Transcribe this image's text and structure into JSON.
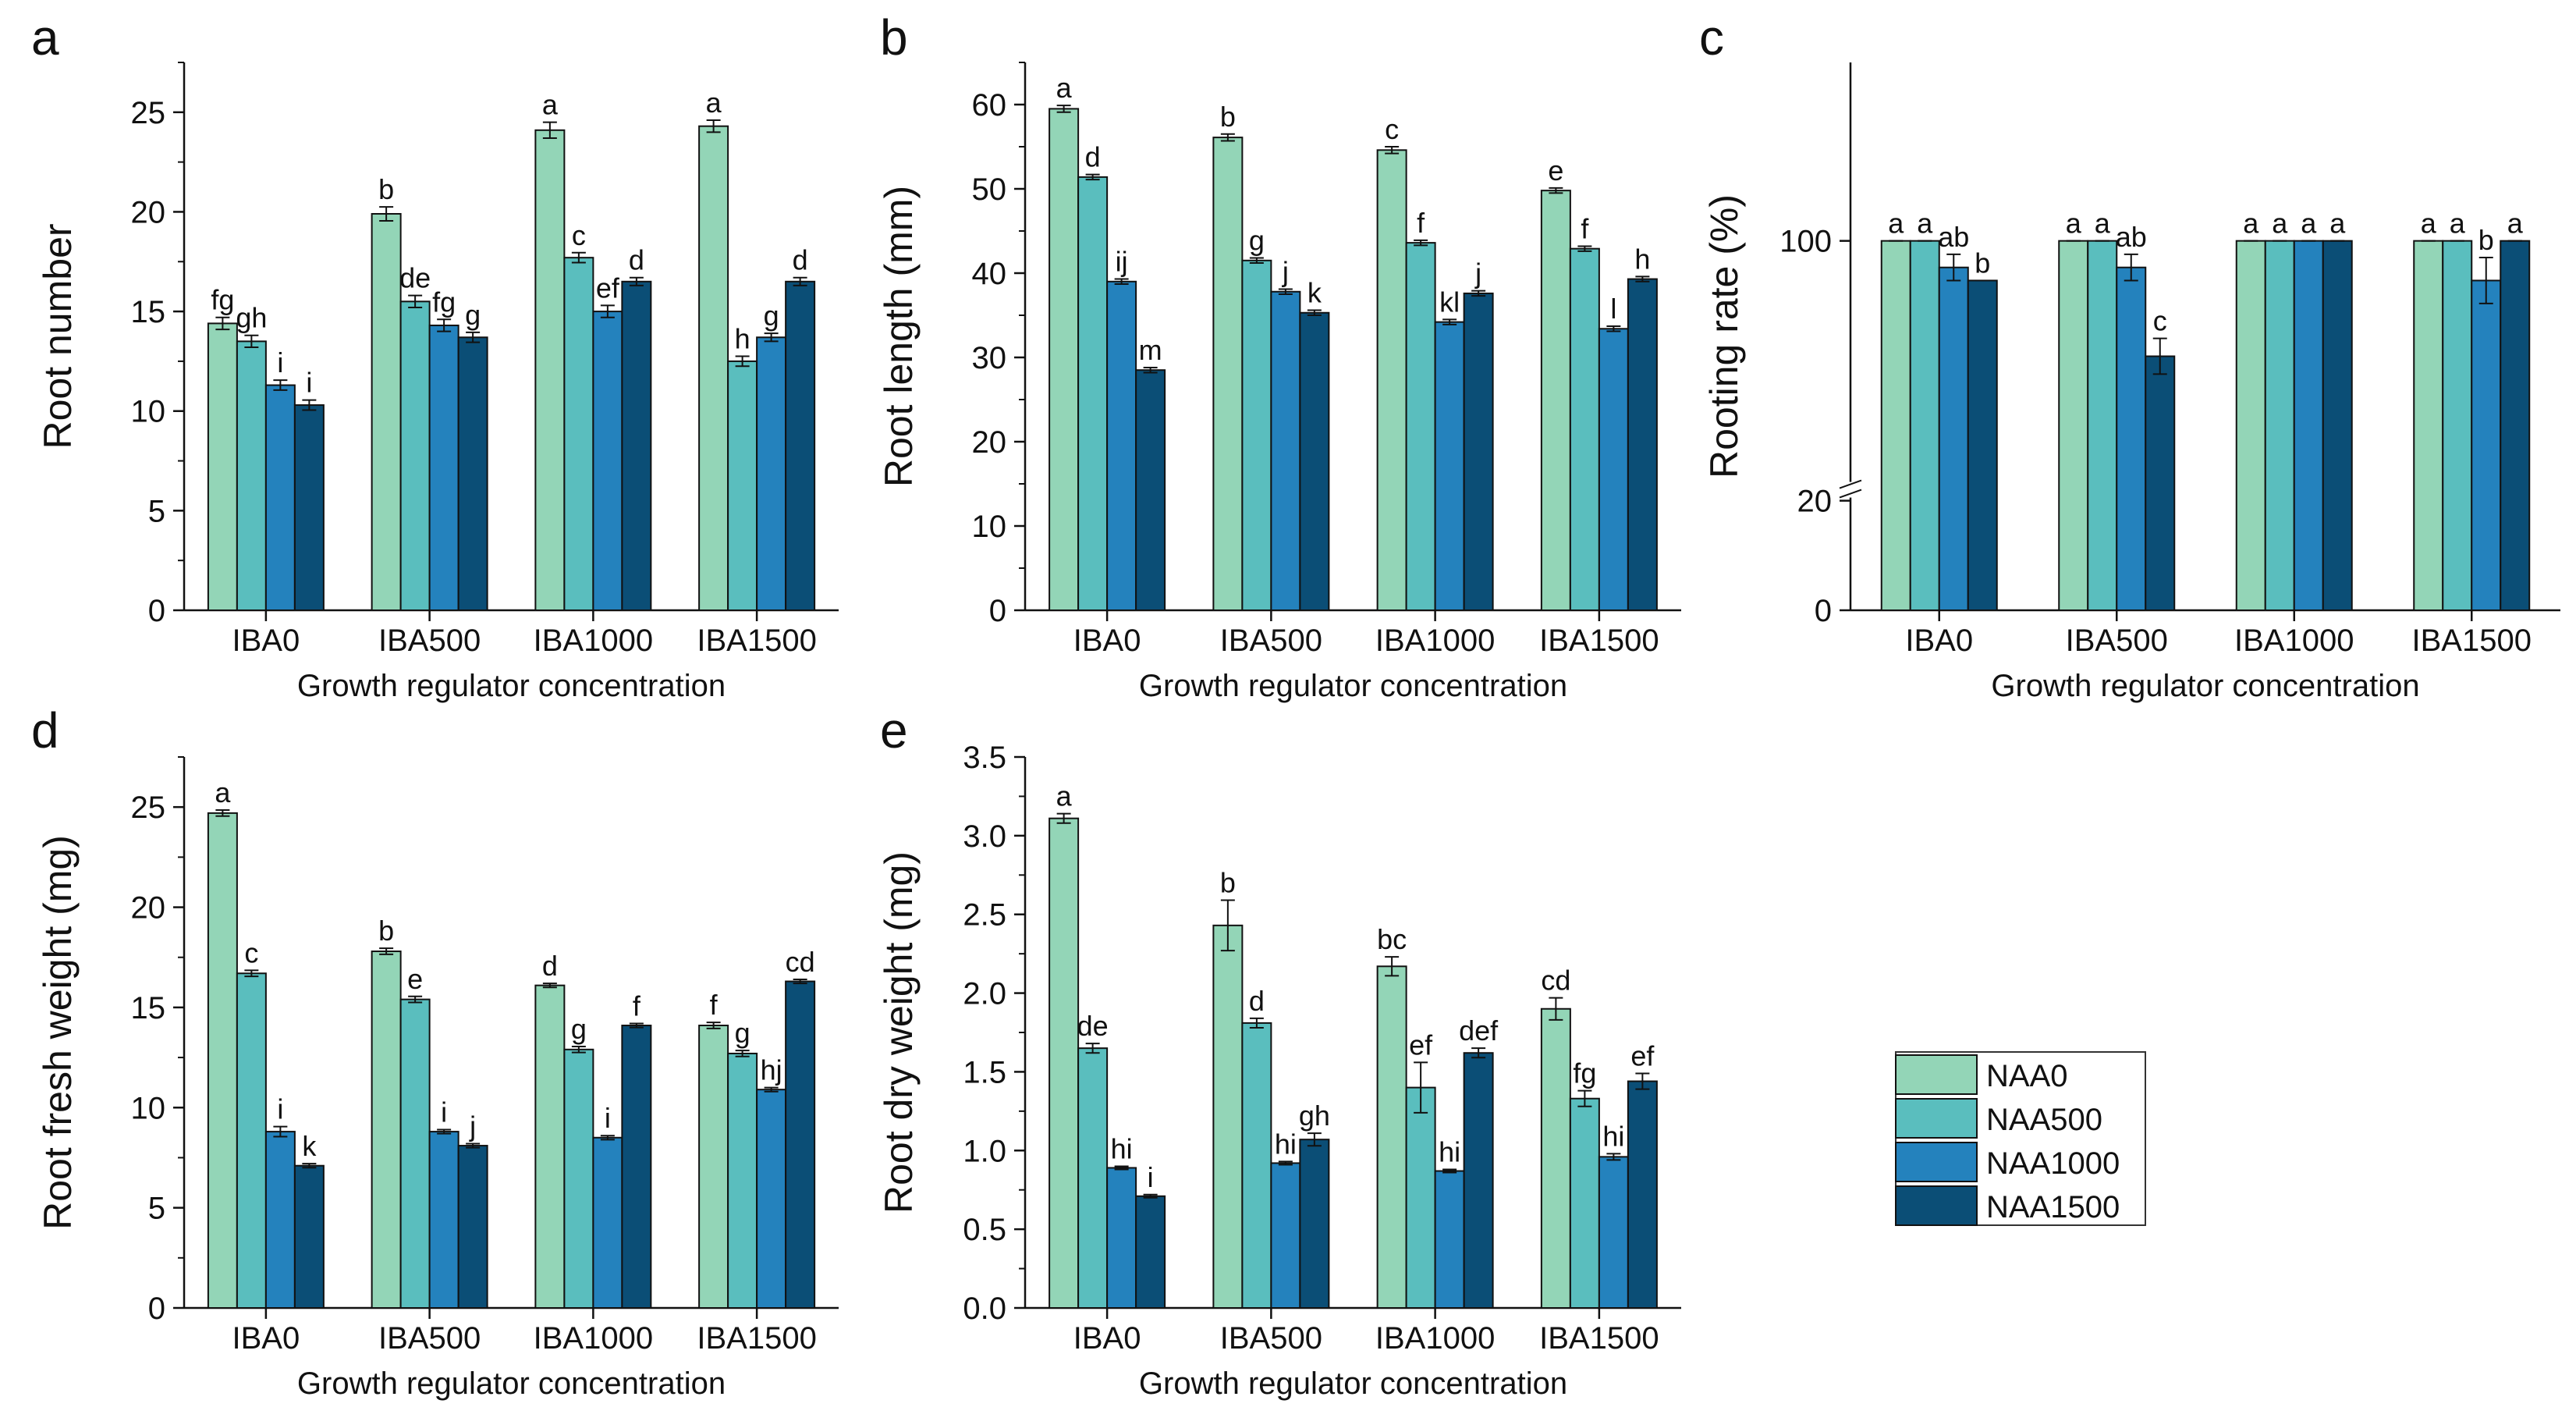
{
  "x_axis_title": "Growth regulator concentration",
  "legend": {
    "entries": [
      "NAA0",
      "NAA500",
      "NAA1000",
      "NAA1500"
    ],
    "colors": [
      "#93d5b7",
      "#5abebe",
      "#2482bd",
      "#0b4e76"
    ]
  },
  "chart_data": [
    {
      "type": "bar",
      "panel": "a",
      "ylabel": "Root number",
      "xlabel": "Growth regulator concentration",
      "categories": [
        "IBA0",
        "IBA500",
        "IBA1000",
        "IBA1500"
      ],
      "ylim": [
        0,
        27.5
      ],
      "yticks": [
        0,
        5,
        10,
        15,
        20,
        25
      ],
      "ytick_labels": [
        "0",
        "5",
        "10",
        "15",
        "20",
        "25"
      ],
      "series": [
        {
          "name": "NAA0",
          "values": [
            14.4,
            19.9,
            24.1,
            24.3
          ],
          "errors": [
            0.3,
            0.35,
            0.4,
            0.3
          ],
          "letters": [
            "fg",
            "b",
            "a",
            "a"
          ]
        },
        {
          "name": "NAA500",
          "values": [
            13.5,
            15.5,
            17.7,
            12.5
          ],
          "errors": [
            0.3,
            0.3,
            0.25,
            0.25
          ],
          "letters": [
            "gh",
            "de",
            "c",
            "h"
          ]
        },
        {
          "name": "NAA1000",
          "values": [
            11.3,
            14.3,
            15.0,
            13.7
          ],
          "errors": [
            0.25,
            0.3,
            0.3,
            0.2
          ],
          "letters": [
            "i",
            "fg",
            "ef",
            "g"
          ]
        },
        {
          "name": "NAA1500",
          "values": [
            10.3,
            13.7,
            16.5,
            16.5
          ],
          "errors": [
            0.25,
            0.25,
            0.2,
            0.2
          ],
          "letters": [
            "i",
            "g",
            "d",
            "d"
          ]
        }
      ]
    },
    {
      "type": "bar",
      "panel": "b",
      "ylabel": "Root length (mm)",
      "xlabel": "Growth regulator concentration",
      "categories": [
        "IBA0",
        "IBA500",
        "IBA1000",
        "IBA1500"
      ],
      "ylim": [
        0,
        65
      ],
      "yticks": [
        0,
        10,
        20,
        30,
        40,
        50,
        60
      ],
      "ytick_labels": [
        "0",
        "10",
        "20",
        "30",
        "40",
        "50",
        "60"
      ],
      "series": [
        {
          "name": "NAA0",
          "values": [
            59.5,
            56.1,
            54.6,
            49.8
          ],
          "errors": [
            0.4,
            0.4,
            0.4,
            0.3
          ],
          "letters": [
            "a",
            "b",
            "c",
            "e"
          ]
        },
        {
          "name": "NAA500",
          "values": [
            51.4,
            41.5,
            43.6,
            42.9
          ],
          "errors": [
            0.3,
            0.3,
            0.3,
            0.3
          ],
          "letters": [
            "d",
            "g",
            "f",
            "f"
          ]
        },
        {
          "name": "NAA1000",
          "values": [
            39.0,
            37.8,
            34.2,
            33.4
          ],
          "errors": [
            0.3,
            0.3,
            0.3,
            0.3
          ],
          "letters": [
            "ij",
            "j",
            "kl",
            "l"
          ]
        },
        {
          "name": "NAA1500",
          "values": [
            28.5,
            35.3,
            37.6,
            39.3
          ],
          "errors": [
            0.3,
            0.3,
            0.3,
            0.3
          ],
          "letters": [
            "m",
            "k",
            "j",
            "h"
          ]
        }
      ]
    },
    {
      "type": "bar",
      "panel": "c",
      "ylabel": "Rooting rate (%)",
      "xlabel": "Growth regulator concentration",
      "categories": [
        "IBA0",
        "IBA500",
        "IBA1000",
        "IBA1500"
      ],
      "ylim": [
        0,
        145
      ],
      "axis_break": [
        20,
        40
      ],
      "yticks": [
        0,
        20,
        100
      ],
      "ytick_labels": [
        "0",
        "20",
        "100"
      ],
      "series": [
        {
          "name": "NAA0",
          "values": [
            100,
            100,
            100,
            100
          ],
          "errors": [
            0,
            0,
            0,
            0
          ],
          "letters": [
            "a",
            "a",
            "a",
            "a"
          ]
        },
        {
          "name": "NAA500",
          "values": [
            100,
            100,
            100,
            100
          ],
          "errors": [
            0,
            0,
            0,
            0
          ],
          "letters": [
            "a",
            "a",
            "a",
            "a"
          ]
        },
        {
          "name": "NAA1000",
          "values": [
            93.3,
            93.3,
            100,
            90.0
          ],
          "errors": [
            3.3,
            3.3,
            0,
            5.8
          ],
          "letters": [
            "ab",
            "ab",
            "a",
            "b"
          ]
        },
        {
          "name": "NAA1500",
          "values": [
            90.0,
            70.9,
            100,
            100
          ],
          "errors": [
            0,
            4.5,
            0,
            0
          ],
          "letters": [
            "b",
            "c",
            "a",
            "a"
          ]
        }
      ]
    },
    {
      "type": "bar",
      "panel": "d",
      "ylabel": "Root fresh weight (mg)",
      "xlabel": "Growth regulator concentration",
      "categories": [
        "IBA0",
        "IBA500",
        "IBA1000",
        "IBA1500"
      ],
      "ylim": [
        0,
        27.5
      ],
      "yticks": [
        0,
        5,
        10,
        15,
        20,
        25
      ],
      "ytick_labels": [
        "0",
        "5",
        "10",
        "15",
        "20",
        "25"
      ],
      "series": [
        {
          "name": "NAA0",
          "values": [
            24.7,
            17.8,
            16.1,
            14.1
          ],
          "errors": [
            0.15,
            0.15,
            0.1,
            0.15
          ],
          "letters": [
            "a",
            "b",
            "d",
            "f"
          ]
        },
        {
          "name": "NAA500",
          "values": [
            16.7,
            15.4,
            12.9,
            12.7
          ],
          "errors": [
            0.15,
            0.15,
            0.15,
            0.15
          ],
          "letters": [
            "c",
            "e",
            "g",
            "g"
          ]
        },
        {
          "name": "NAA1000",
          "values": [
            8.8,
            8.8,
            8.5,
            10.9
          ],
          "errors": [
            0.25,
            0.1,
            0.1,
            0.1
          ],
          "letters": [
            "i",
            "i",
            "i",
            "hj"
          ]
        },
        {
          "name": "NAA1500",
          "values": [
            7.1,
            8.1,
            14.1,
            16.3
          ],
          "errors": [
            0.1,
            0.1,
            0.1,
            0.1
          ],
          "letters": [
            "k",
            "j",
            "f",
            "cd"
          ]
        }
      ]
    },
    {
      "type": "bar",
      "panel": "e",
      "ylabel": "Root dry weight (mg)",
      "xlabel": "Growth regulator concentration",
      "categories": [
        "IBA0",
        "IBA500",
        "IBA1000",
        "IBA1500"
      ],
      "ylim": [
        0,
        3.5
      ],
      "yticks": [
        0,
        0.5,
        1,
        1.5,
        2,
        2.5,
        3,
        3.5
      ],
      "ytick_labels": [
        "0.0",
        "0.5",
        "1.0",
        "1.5",
        "2.0",
        "2.5",
        "3.0",
        "3.5"
      ],
      "series": [
        {
          "name": "NAA0",
          "values": [
            3.11,
            2.43,
            2.17,
            1.9
          ],
          "errors": [
            0.03,
            0.16,
            0.06,
            0.07
          ],
          "letters": [
            "a",
            "b",
            "bc",
            "cd"
          ]
        },
        {
          "name": "NAA500",
          "values": [
            1.65,
            1.81,
            1.4,
            1.33
          ],
          "errors": [
            0.03,
            0.03,
            0.16,
            0.05
          ],
          "letters": [
            "de",
            "d",
            "ef",
            "fg"
          ]
        },
        {
          "name": "NAA1000",
          "values": [
            0.89,
            0.92,
            0.87,
            0.96
          ],
          "errors": [
            0.01,
            0.01,
            0.01,
            0.02
          ],
          "letters": [
            "hi",
            "hi",
            "hi",
            "hi"
          ]
        },
        {
          "name": "NAA1500",
          "values": [
            0.71,
            1.07,
            1.62,
            1.44
          ],
          "errors": [
            0.01,
            0.04,
            0.03,
            0.05
          ],
          "letters": [
            "i",
            "gh",
            "def",
            "ef"
          ]
        }
      ]
    }
  ]
}
